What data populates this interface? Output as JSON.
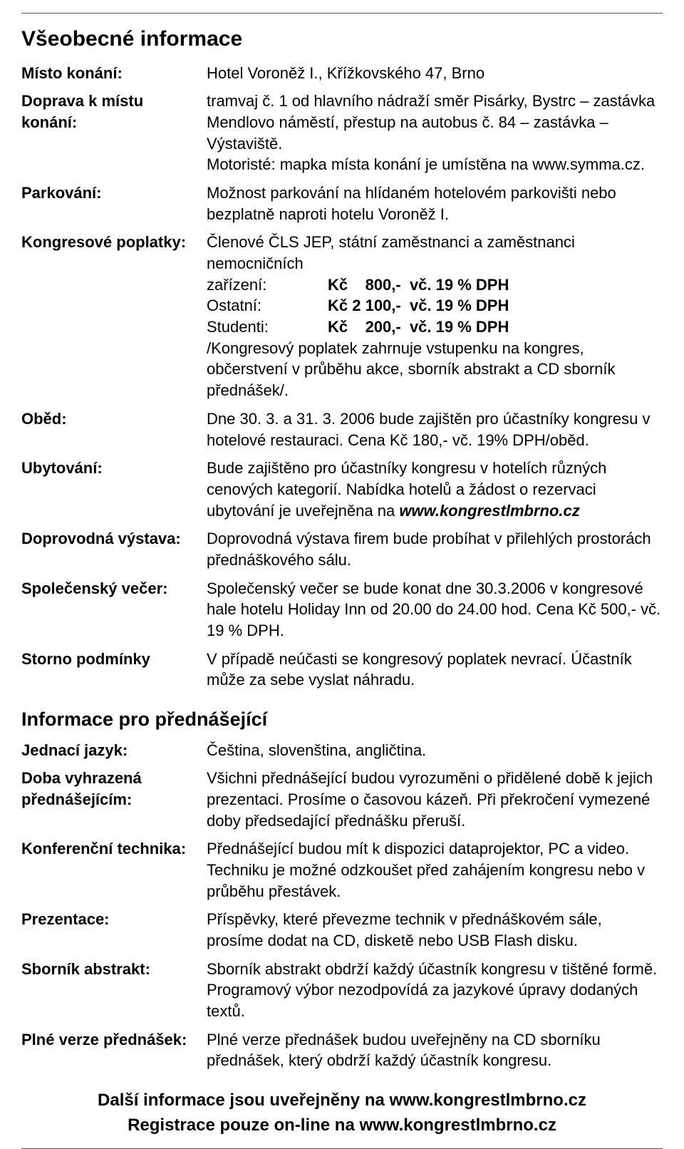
{
  "section1_title": "Všeobecné informace",
  "rows1": {
    "misto_label": "Místo konání:",
    "misto_value": "Hotel Voroněž I., Křížkovského 47, Brno",
    "doprava_label": "Doprava k místu konání:",
    "doprava_value": "tramvaj č. 1 od hlavního nádraží směr Pisárky, Bystrc – zastávka Mendlovo náměstí, přestup na autobus č. 84 – zastávka – Výstaviště.\nMotoristé: mapka místa konání je umístěna na www.symma.cz.",
    "parkovani_label": "Parkování:",
    "parkovani_value": "Možnost parkování na hlídaném hotelovém parkovišti nebo bezplatně naproti hotelu Voroněž I.",
    "poplatky_label": "Kongresové poplatky:",
    "poplatky_intro": "Členové ČLS JEP, státní zaměstnanci a zaměstnanci nemocničních",
    "poplatky_intro2": "zařízení:",
    "fee1_price": "Kč    800,-  vč. 19 % DPH",
    "fee2_cat": "Ostatní:",
    "fee2_price": "Kč 2 100,-  vč. 19 % DPH",
    "fee3_cat": "Studenti:",
    "fee3_price": "Kč    200,-  vč. 19 % DPH",
    "poplatky_note": "/Kongresový poplatek zahrnuje vstupenku na kongres, občerstvení v průběhu akce, sborník abstrakt a CD sborník přednášek/.",
    "obed_label": "Oběd:",
    "obed_value": "Dne 30. 3. a 31. 3. 2006 bude zajištěn pro účastníky kongresu v hotelové restauraci. Cena Kč 180,- vč. 19% DPH/oběd.",
    "ubytovani_label": "Ubytování:",
    "ubytovani_value_pre": "Bude zajištěno pro účastníky kongresu v hotelích různých cenových kategorií. Nabídka hotelů a žádost o rezervaci ubytování je uveřejněna na ",
    "ubytovani_value_bold": "www.kongrestlmbrno.cz",
    "vystava_label": "Doprovodná výstava:",
    "vystava_value": "Doprovodná výstava firem bude probíhat v přilehlých prostorách přednáškového sálu.",
    "vecer_label": "Společenský večer:",
    "vecer_value": "Společenský večer se bude konat dne 30.3.2006 v kongresové hale hotelu Holiday Inn od 20.00 do 24.00 hod. Cena Kč 500,- vč. 19 % DPH.",
    "storno_label": "Storno podmínky",
    "storno_value": "V případě neúčasti se kongresový poplatek nevrací. Účastník může za sebe vyslat náhradu."
  },
  "section2_title": "Informace pro přednášející",
  "rows2": {
    "jazyk_label": "Jednací jazyk:",
    "jazyk_value": "Čeština, slovenština, angličtina.",
    "doba_label": "Doba vyhrazená přednášejícím:",
    "doba_value": "Všichni přednášející budou vyrozuměni o přidělené době k jejich prezentaci. Prosíme o časovou kázeň. Při překročení vymezené doby předsedající přednášku přeruší.",
    "technika_label": "Konferenční technika:",
    "technika_value": "Přednášející budou mít k dispozici dataprojektor, PC a video. Techniku je možné odzkoušet před zahájením kongresu nebo v průběhu přestávek.",
    "prezentace_label": "Prezentace:",
    "prezentace_value": "Příspěvky, které převezme technik v přednáškovém sále, prosíme dodat na CD, disketě nebo USB Flash disku.",
    "sbornik_label": "Sborník abstrakt:",
    "sbornik_value": "Sborník abstrakt obdrží každý účastník kongresu v tištěné formě. Programový výbor nezodpovídá za jazykové úpravy dodaných textů.",
    "plne_label": "Plné verze přednášek:",
    "plne_value": "Plné verze přednášek budou uveřejněny na CD sborníku přednášek, který obdrží každý účastník kongresu."
  },
  "footer_line1": "Další informace jsou uveřejněny na www.kongrestlmbrno.cz",
  "footer_line2": "Registrace pouze on-line na www.kongrestlmbrno.cz"
}
